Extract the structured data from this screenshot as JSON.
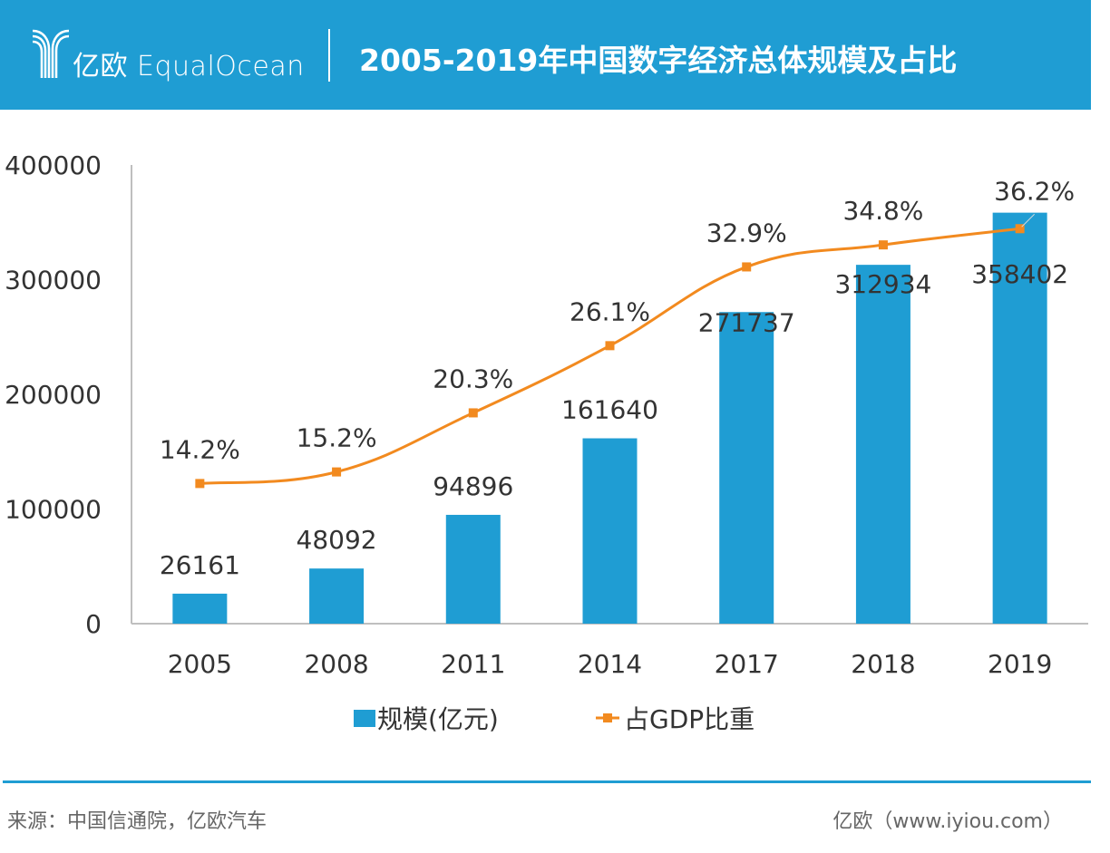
{
  "header": {
    "brand_cn": "亿欧",
    "brand_en": "EqualOcean",
    "title": "2005-2019年中国数字经济总体规模及占比",
    "background_color": "#1f9dd3"
  },
  "footer": {
    "source": "来源：中国信通院，亿欧汽车",
    "credit": "亿欧（www.iyiou.com）"
  },
  "chart_data": {
    "type": "bar",
    "title": "2005-2019年中国数字经济总体规模及占比",
    "xlabel": "",
    "ylabel": "",
    "categories": [
      "2005",
      "2008",
      "2011",
      "2014",
      "2017",
      "2018",
      "2019"
    ],
    "ylim": [
      0,
      400000
    ],
    "yticks": [
      0,
      100000,
      200000,
      300000,
      400000
    ],
    "ytick_labels": [
      "0",
      "100000",
      "200000",
      "300000",
      "400000"
    ],
    "y2lim": [
      2.1,
      41.7
    ],
    "grid": false,
    "legend_position": "bottom",
    "series": [
      {
        "name": "规模(亿元)",
        "type": "bar",
        "color": "#1f9dd3",
        "values": [
          26161,
          48092,
          94896,
          161640,
          271737,
          312934,
          358402
        ],
        "labels": [
          "26161",
          "48092",
          "94896",
          "161640",
          "271737",
          "312934",
          "358402"
        ]
      },
      {
        "name": "占GDP比重",
        "type": "line",
        "axis": "secondary",
        "color": "#f28a1f",
        "marker": "square",
        "smooth": true,
        "values": [
          14.2,
          15.2,
          20.3,
          26.1,
          32.9,
          34.8,
          36.2
        ],
        "labels": [
          "14.2%",
          "15.2%",
          "20.3%",
          "26.1%",
          "32.9%",
          "34.8%",
          "36.2%"
        ]
      }
    ]
  }
}
